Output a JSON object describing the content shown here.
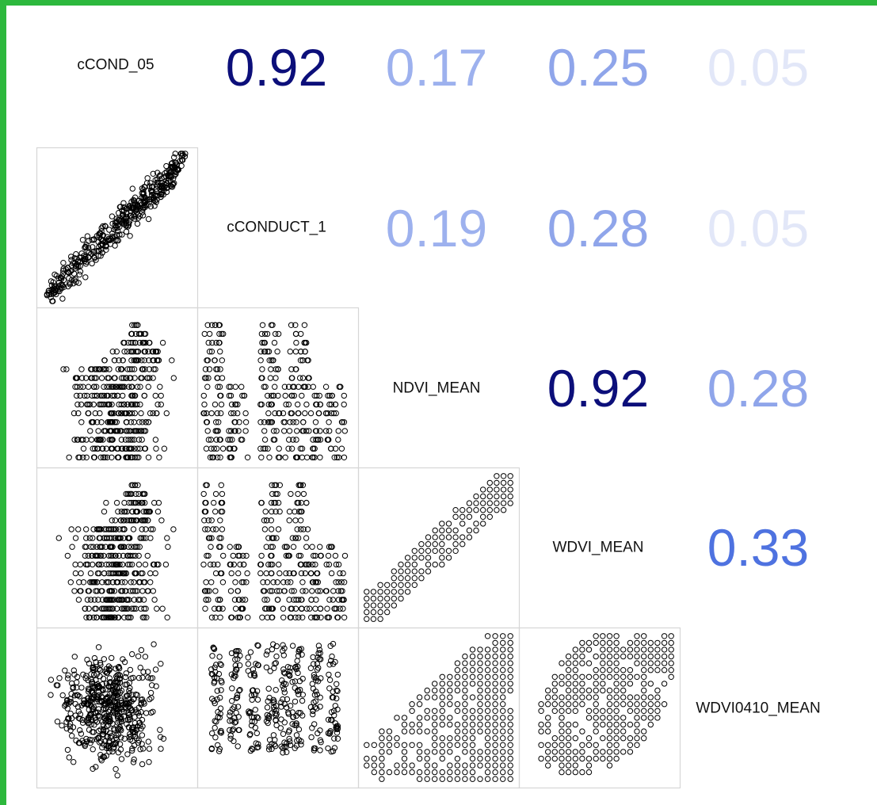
{
  "frame": {
    "color": "#2db83d"
  },
  "chart_data": {
    "type": "scatter",
    "title": "",
    "variables": [
      "cCOND_05",
      "cCONDUCT_1",
      "NDVI_MEAN",
      "WDVI_MEAN",
      "WDVI0410_MEAN"
    ],
    "correlations": [
      {
        "row": 0,
        "col": 1,
        "value": "0.92",
        "r": 0.92,
        "color": "#0c0f7a"
      },
      {
        "row": 0,
        "col": 2,
        "value": "0.17",
        "r": 0.17,
        "color": "#9db1ee"
      },
      {
        "row": 0,
        "col": 3,
        "value": "0.25",
        "r": 0.25,
        "color": "#8fa5ea"
      },
      {
        "row": 0,
        "col": 4,
        "value": "0.05",
        "r": 0.05,
        "color": "#e2e7f8"
      },
      {
        "row": 1,
        "col": 2,
        "value": "0.19",
        "r": 0.19,
        "color": "#9db1ee"
      },
      {
        "row": 1,
        "col": 3,
        "value": "0.28",
        "r": 0.28,
        "color": "#8fa5ea"
      },
      {
        "row": 1,
        "col": 4,
        "value": "0.05",
        "r": 0.05,
        "color": "#e2e7f8"
      },
      {
        "row": 2,
        "col": 3,
        "value": "0.92",
        "r": 0.92,
        "color": "#0c0f7a"
      },
      {
        "row": 2,
        "col": 4,
        "value": "0.28",
        "r": 0.28,
        "color": "#8fa5ea"
      },
      {
        "row": 3,
        "col": 4,
        "value": "0.33",
        "r": 0.33,
        "color": "#4e72e0"
      }
    ],
    "scatter_panels": [
      {
        "row": 1,
        "col": 0,
        "pattern": "strong-linear"
      },
      {
        "row": 2,
        "col": 0,
        "pattern": "banded-block"
      },
      {
        "row": 2,
        "col": 1,
        "pattern": "banded-gaps"
      },
      {
        "row": 3,
        "col": 0,
        "pattern": "banded-block"
      },
      {
        "row": 3,
        "col": 1,
        "pattern": "banded-gaps"
      },
      {
        "row": 3,
        "col": 2,
        "pattern": "grid-linear"
      },
      {
        "row": 4,
        "col": 0,
        "pattern": "dense-cloud"
      },
      {
        "row": 4,
        "col": 1,
        "pattern": "dense-columns"
      },
      {
        "row": 4,
        "col": 2,
        "pattern": "grid-wedge"
      },
      {
        "row": 4,
        "col": 3,
        "pattern": "grid-blob"
      }
    ],
    "point_color": "#000000",
    "panel_border_color": "#d6d6d6",
    "grid": false,
    "legend": "none"
  }
}
